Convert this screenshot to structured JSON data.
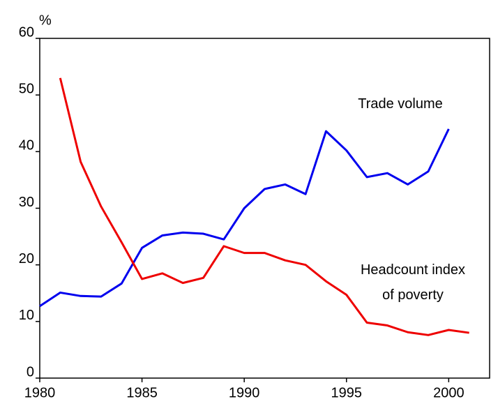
{
  "chart_data": {
    "type": "line",
    "ylabel": "%",
    "x": [
      1980,
      1981,
      1982,
      1983,
      1984,
      1985,
      1986,
      1987,
      1988,
      1989,
      1990,
      1991,
      1992,
      1993,
      1994,
      1995,
      1996,
      1997,
      1998,
      1999,
      2000,
      2001
    ],
    "series": [
      {
        "name": "Trade volume",
        "color": "#0000ee",
        "values": [
          12.7,
          15.1,
          14.5,
          14.4,
          16.7,
          23.0,
          25.2,
          25.7,
          25.5,
          24.5,
          30.0,
          33.4,
          34.2,
          32.5,
          43.6,
          40.2,
          35.5,
          36.2,
          34.2,
          36.5,
          44.0,
          null
        ]
      },
      {
        "name": "Headcount index of poverty",
        "color": "#ee0000",
        "values": [
          null,
          53.0,
          38.2,
          30.3,
          24.0,
          17.5,
          18.5,
          16.8,
          17.7,
          23.3,
          22.1,
          22.1,
          20.8,
          20.0,
          17.1,
          14.7,
          9.8,
          9.3,
          8.1,
          7.6,
          8.5,
          8.0
        ]
      }
    ],
    "xlim": [
      1980,
      2002
    ],
    "ylim": [
      0,
      60
    ],
    "xticks": [
      1980,
      1985,
      1990,
      1995,
      2000
    ],
    "yticks": [
      0,
      10,
      20,
      30,
      40,
      50,
      60
    ],
    "grid": false
  }
}
